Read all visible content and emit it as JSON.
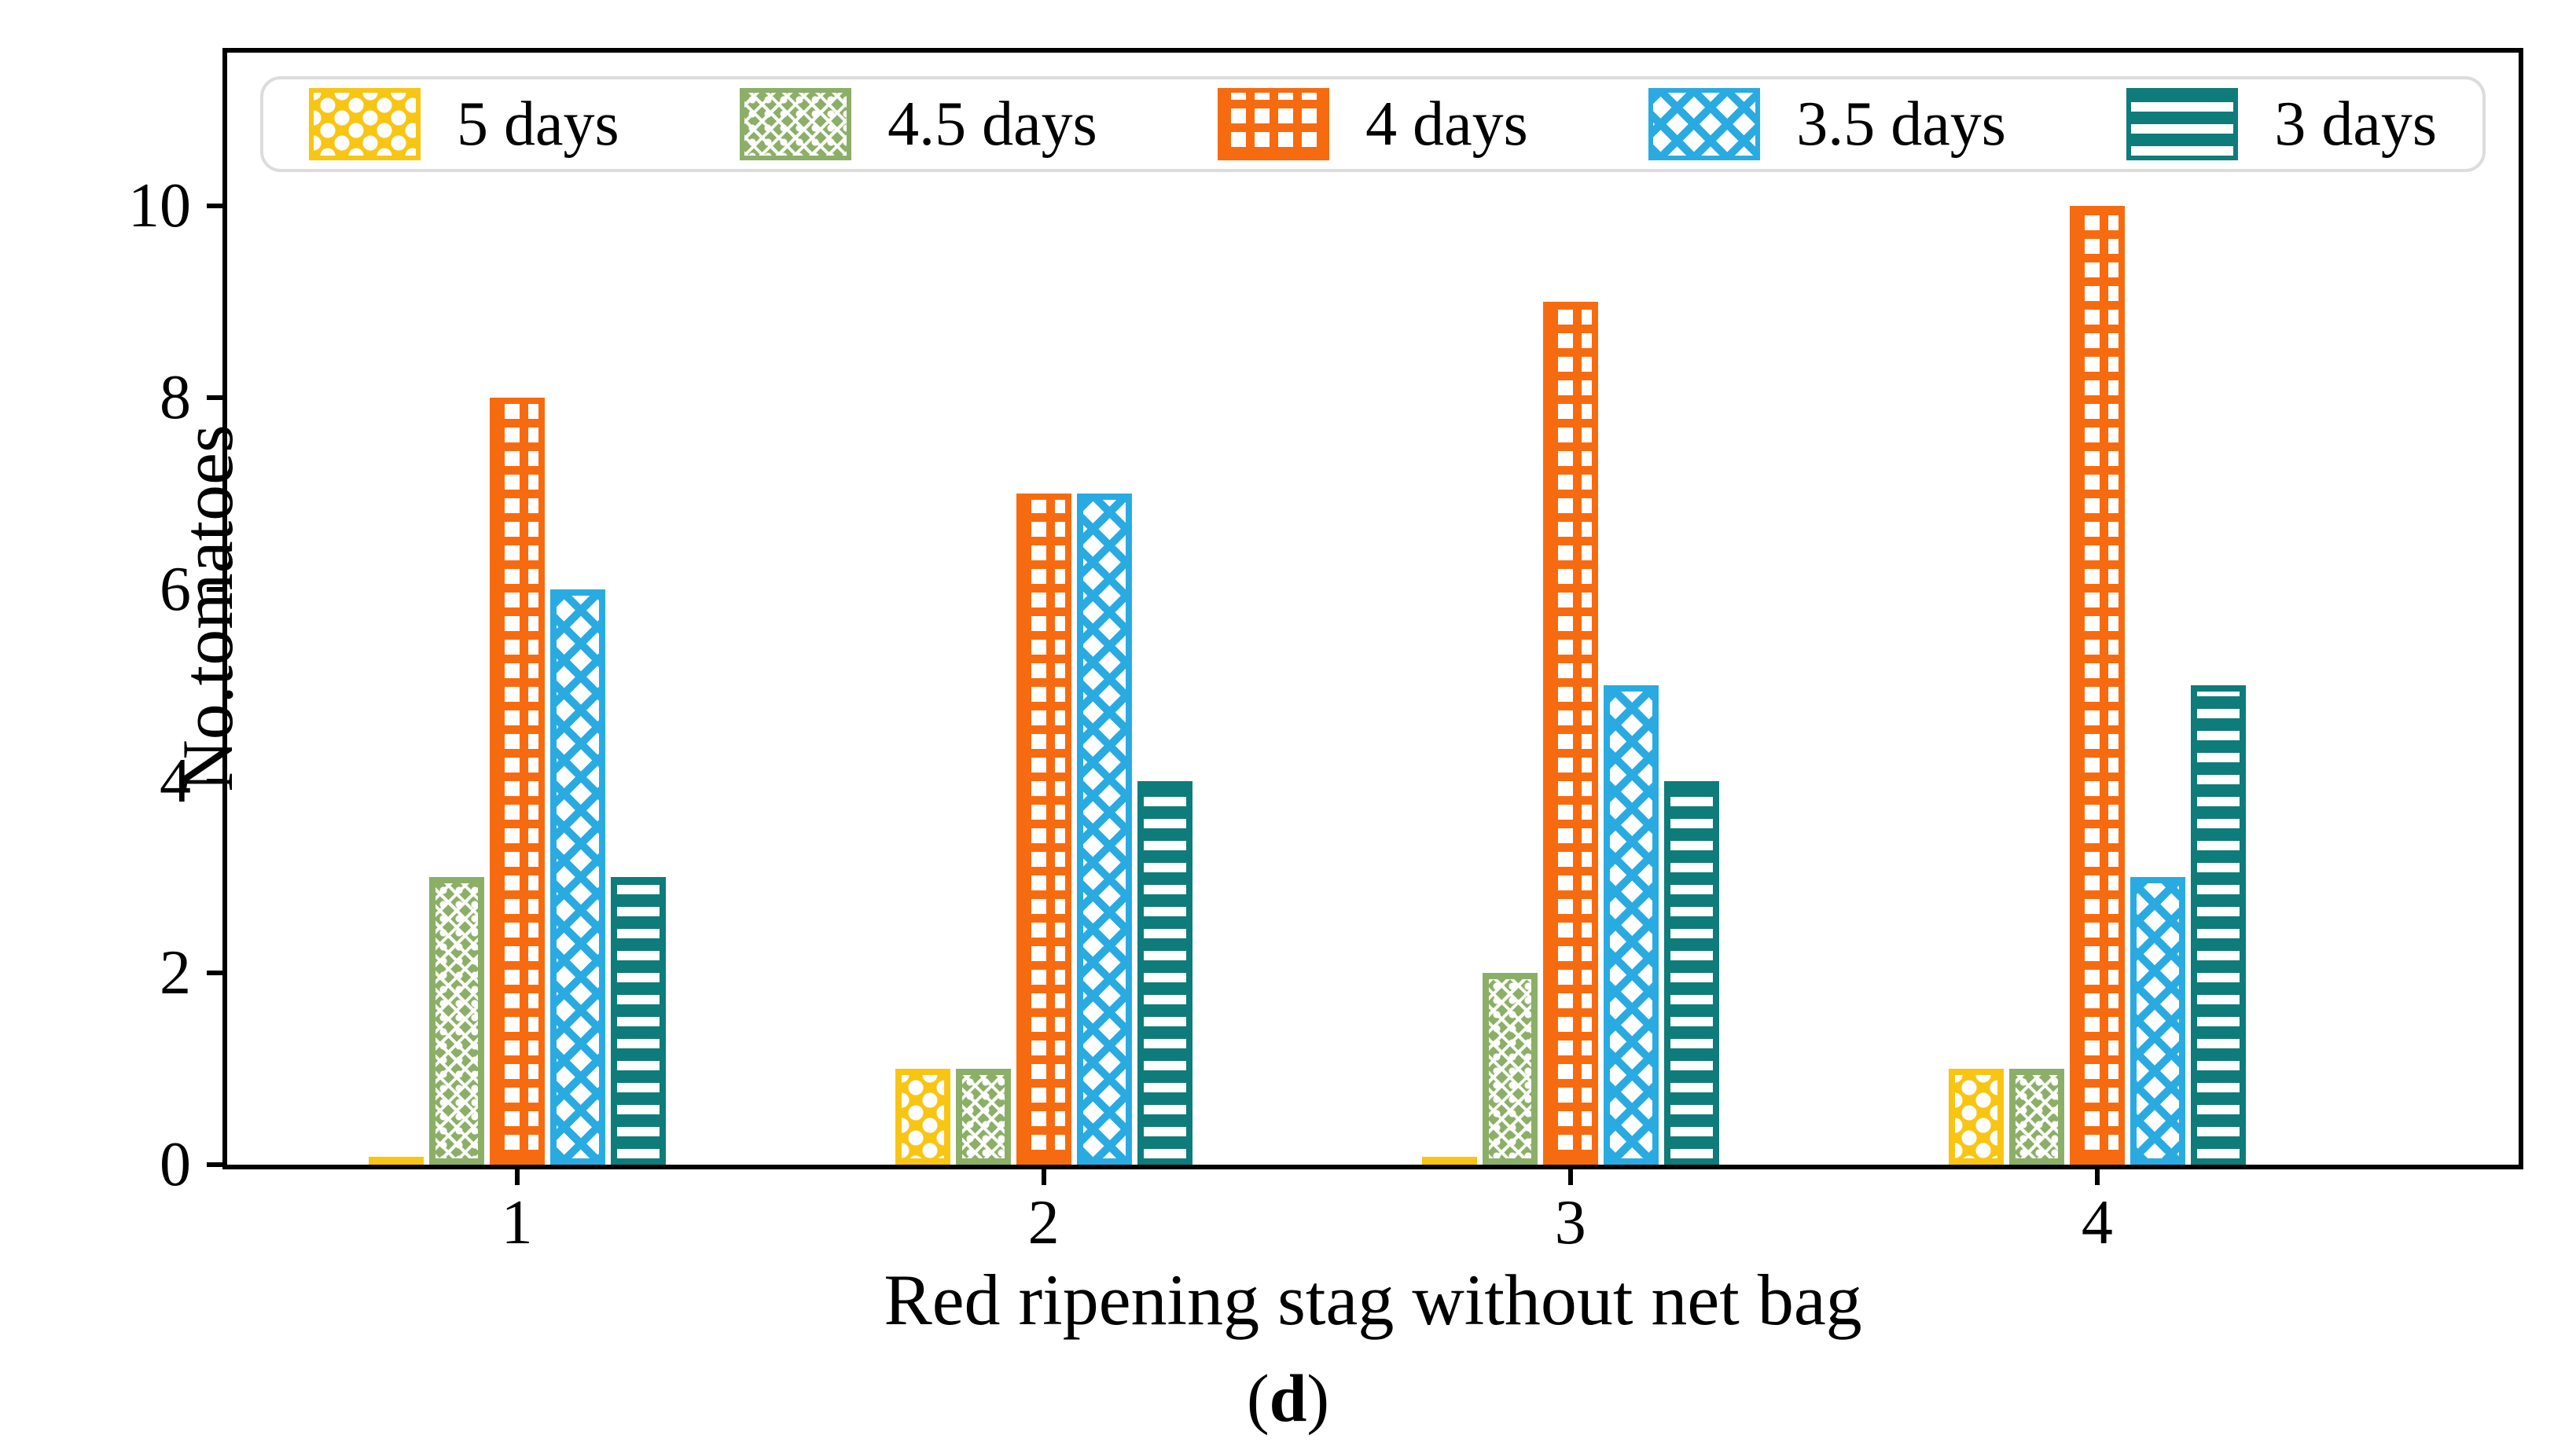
{
  "chart_data": {
    "type": "bar",
    "title": "",
    "xlabel": "Red ripening stag without net bag",
    "ylabel": "No.tomatoes",
    "caption": {
      "open": "(",
      "letter": "d",
      "close": ")"
    },
    "categories": [
      1,
      2,
      3,
      4
    ],
    "series": [
      {
        "name": "5 days",
        "color": "#F8C513",
        "pattern": "dots",
        "values": [
          0,
          1,
          0,
          1
        ]
      },
      {
        "name": "4.5 days",
        "color": "#8CAF68",
        "pattern": "stars",
        "values": [
          3,
          1,
          2,
          1
        ]
      },
      {
        "name": "4 days",
        "color": "#F76B10",
        "pattern": "grid",
        "values": [
          8,
          7,
          9,
          10
        ]
      },
      {
        "name": "3.5 days",
        "color": "#29ABE2",
        "pattern": "crosshatch",
        "values": [
          6,
          7,
          5,
          3
        ]
      },
      {
        "name": "3 days",
        "color": "#0E7C7B",
        "pattern": "hlines",
        "values": [
          3,
          4,
          4,
          5
        ]
      }
    ],
    "yticks": [
      0,
      2,
      4,
      6,
      8,
      10
    ],
    "ylim": [
      0,
      11.6
    ],
    "xlim": [
      0.45,
      4.8
    ],
    "grid": false,
    "legend_position": "top-inside",
    "axis_color": "#000000",
    "legend_border_color": "#dcdcdc"
  }
}
